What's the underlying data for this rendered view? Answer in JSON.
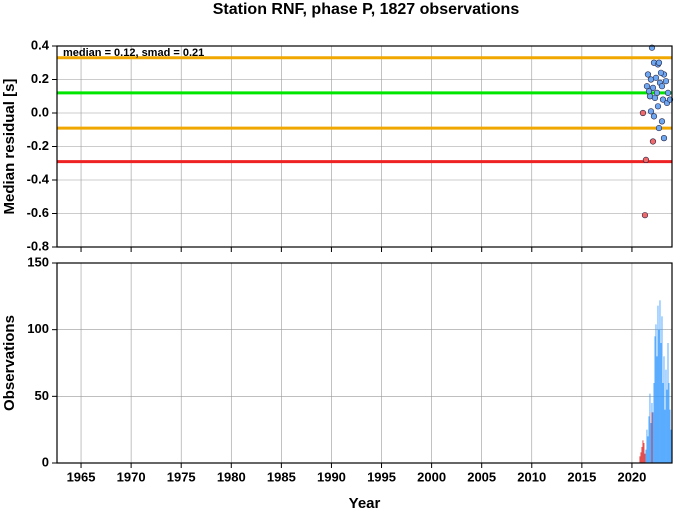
{
  "chart_data": [
    {
      "type": "scatter",
      "title": "Station RNF, phase P, 1827 observations",
      "annotation": "median = 0.12, smad = 0.21",
      "ylabel": "Median residual [s]",
      "xlim": [
        1962.6,
        2024
      ],
      "xticks": [
        1965,
        1970,
        1975,
        1980,
        1985,
        1990,
        1995,
        2000,
        2005,
        2010,
        2015,
        2020
      ],
      "ylim": [
        -0.8,
        0.4
      ],
      "yticks": [
        0.4,
        0.2,
        {
          "value": 0,
          "label": "0.0"
        },
        -0.2,
        -0.4,
        -0.6,
        -0.8
      ],
      "grid": true,
      "hlines": [
        {
          "value": 0.33,
          "color": "#f0a800"
        },
        {
          "value": 0.12,
          "color": "#00e600"
        },
        {
          "value": -0.09,
          "color": "#f0a800"
        },
        {
          "value": -0.29,
          "color": "#ee2222"
        }
      ],
      "series": [
        {
          "color": "#6fa8f0",
          "x": [
            2022.0,
            2022.2,
            2022.6,
            2022.7,
            2023.2,
            2022.9,
            2021.6,
            2021.9,
            2022.4,
            2022.8,
            2023.4,
            2021.5,
            2022.1,
            2023.0,
            2022.5,
            2023.6,
            2021.8,
            2022.3,
            2023.1,
            2023.5,
            2022.6,
            2021.9,
            2022.2,
            2023.0,
            2022.7,
            2023.2,
            2023.8,
            2021.7
          ],
          "values": [
            0.39,
            0.3,
            0.29,
            0.3,
            0.23,
            0.24,
            0.23,
            0.2,
            0.21,
            0.18,
            0.19,
            0.16,
            0.15,
            0.16,
            0.12,
            0.12,
            0.1,
            0.09,
            0.08,
            0.06,
            0.04,
            0.01,
            -0.02,
            -0.05,
            -0.09,
            -0.15,
            0.08,
            0.13
          ]
        },
        {
          "color": "#f06a6a",
          "x": [
            2021.1,
            2021.4,
            2021.3,
            2022.1
          ],
          "values": [
            0.0,
            -0.28,
            -0.61,
            -0.17
          ]
        }
      ]
    },
    {
      "type": "bar",
      "xlabel": "Year",
      "ylabel": "Observations",
      "xlim": [
        1962.6,
        2024
      ],
      "xticks": [
        1965,
        1970,
        1975,
        1980,
        1985,
        1990,
        1995,
        2000,
        2005,
        2010,
        2015,
        2020
      ],
      "ylim": [
        0,
        150
      ],
      "yticks": [
        0,
        50,
        100,
        150
      ],
      "grid": true,
      "series": [
        {
          "color": "#3399ff",
          "x": [
            2021.4,
            2021.5,
            2021.6,
            2021.7,
            2021.8,
            2021.9,
            2022.0,
            2022.1,
            2022.2,
            2022.3,
            2022.4,
            2022.5,
            2022.6,
            2022.7,
            2022.8,
            2022.9,
            2023.0,
            2023.1,
            2023.2,
            2023.3,
            2023.4,
            2023.5,
            2023.6,
            2023.7,
            2023.8,
            2023.9
          ],
          "values": [
            10,
            25,
            20,
            35,
            52,
            30,
            45,
            38,
            60,
            95,
            104,
            80,
            118,
            100,
            122,
            90,
            110,
            60,
            80,
            40,
            70,
            55,
            90,
            60,
            40,
            25
          ]
        },
        {
          "color": "#dd2222",
          "x": [
            2020.8,
            2020.9,
            2021.0,
            2021.1,
            2021.2,
            2021.3,
            2022.0
          ],
          "values": [
            5,
            8,
            12,
            17,
            15,
            7,
            38
          ]
        }
      ]
    }
  ]
}
